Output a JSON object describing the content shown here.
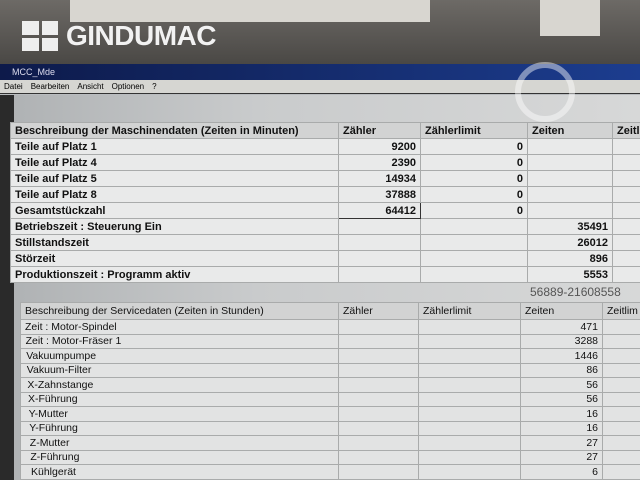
{
  "logo": "GINDUMAC",
  "window": {
    "title": "MCC_Mde"
  },
  "menu": [
    "Datei",
    "Bearbeiten",
    "Ansicht",
    "Optionen",
    "?"
  ],
  "machine_table": {
    "headers": [
      "Beschreibung der Maschinendaten (Zeiten in Minuten)",
      "Zähler",
      "Zählerlimit",
      "Zeiten",
      "Zeitl"
    ],
    "rows": [
      [
        "Teile auf Platz 1",
        "9200",
        "0",
        "",
        ""
      ],
      [
        "Teile auf Platz 4",
        "2390",
        "0",
        "",
        ""
      ],
      [
        "Teile auf Platz 5",
        "14934",
        "0",
        "",
        ""
      ],
      [
        "Teile auf Platz 8",
        "37888",
        "0",
        "",
        ""
      ],
      [
        "Gesamtstückzahl",
        "64412",
        "0",
        "",
        ""
      ],
      [
        "Betriebszeit    : Steuerung Ein",
        "",
        "",
        "35491",
        ""
      ],
      [
        "Stillstandszeit",
        "",
        "",
        "26012",
        ""
      ],
      [
        "Störzeit",
        "",
        "",
        "896",
        ""
      ],
      [
        "Produktionszeit : Programm aktiv",
        "",
        "",
        "5553",
        ""
      ]
    ]
  },
  "service_table": {
    "headers": [
      "Beschreibung der Servicedaten (Zeiten in Stunden)",
      "Zähler",
      "Zählerlimit",
      "Zeiten",
      "Zeitlim"
    ],
    "rows": [
      [
        "Zeit : Motor-Spindel",
        "",
        "",
        "471",
        ""
      ],
      [
        "Zeit : Motor-Fräser 1",
        "",
        "",
        "3288",
        ""
      ],
      [
        "Vakuumpumpe",
        "",
        "",
        "1446",
        ""
      ],
      [
        "Vakuum-Filter",
        "",
        "",
        "86",
        ""
      ],
      [
        "X-Zahnstange",
        "",
        "",
        "56",
        ""
      ],
      [
        "X-Führung",
        "",
        "",
        "56",
        ""
      ],
      [
        "Y-Mutter",
        "",
        "",
        "16",
        ""
      ],
      [
        "Y-Führung",
        "",
        "",
        "16",
        ""
      ],
      [
        "Z-Mutter",
        "",
        "",
        "27",
        ""
      ],
      [
        "Z-Führung",
        "",
        "",
        "27",
        ""
      ],
      [
        "Kühlgerät",
        "",
        "",
        "6",
        ""
      ]
    ]
  },
  "watermark": "56889-21608558"
}
